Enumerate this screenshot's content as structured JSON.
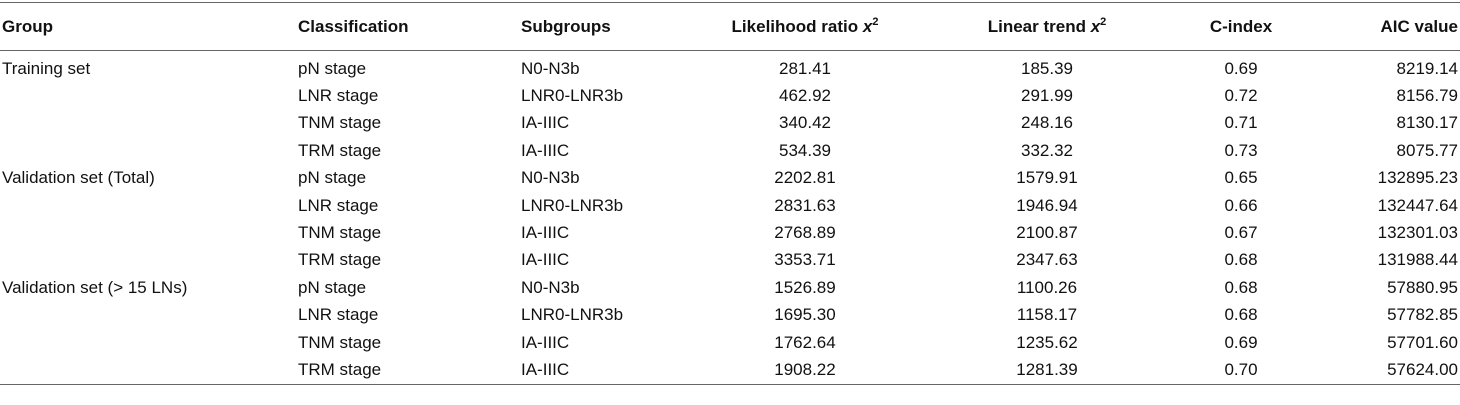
{
  "table": {
    "header": [
      "Group",
      "Classification",
      "Subgroups",
      {
        "text": "Likelihood ratio ",
        "symbol": "x",
        "sup": "2"
      },
      {
        "text": "Linear trend ",
        "symbol": "x",
        "sup": "2"
      },
      "C-index",
      "AIC value"
    ],
    "groups": [
      {
        "name": "Training set",
        "rows": [
          [
            "pN stage",
            "N0-N3b",
            "281.41",
            "185.39",
            "0.69",
            "8219.14"
          ],
          [
            "LNR stage",
            "LNR0-LNR3b",
            "462.92",
            "291.99",
            "0.72",
            "8156.79"
          ],
          [
            "TNM stage",
            "IA-IIIC",
            "340.42",
            "248.16",
            "0.71",
            "8130.17"
          ],
          [
            "TRM stage",
            "IA-IIIC",
            "534.39",
            "332.32",
            "0.73",
            "8075.77"
          ]
        ]
      },
      {
        "name": "Validation set (Total)",
        "rows": [
          [
            "pN stage",
            "N0-N3b",
            "2202.81",
            "1579.91",
            "0.65",
            "132895.23"
          ],
          [
            "LNR stage",
            "LNR0-LNR3b",
            "2831.63",
            "1946.94",
            "0.66",
            "132447.64"
          ],
          [
            "TNM stage",
            "IA-IIIC",
            "2768.89",
            "2100.87",
            "0.67",
            "132301.03"
          ],
          [
            "TRM stage",
            "IA-IIIC",
            "3353.71",
            "2347.63",
            "0.68",
            "131988.44"
          ]
        ]
      },
      {
        "name": "Validation set (> 15 LNs)",
        "rows": [
          [
            "pN stage",
            "N0-N3b",
            "1526.89",
            "1100.26",
            "0.68",
            "57880.95"
          ],
          [
            "LNR stage",
            "LNR0-LNR3b",
            "1695.30",
            "1158.17",
            "0.68",
            "57782.85"
          ],
          [
            "TNM stage",
            "IA-IIIC",
            "1762.64",
            "1235.62",
            "0.69",
            "57701.60"
          ],
          [
            "TRM stage",
            "IA-IIIC",
            "1908.22",
            "1281.39",
            "0.70",
            "57624.00"
          ]
        ]
      }
    ]
  }
}
